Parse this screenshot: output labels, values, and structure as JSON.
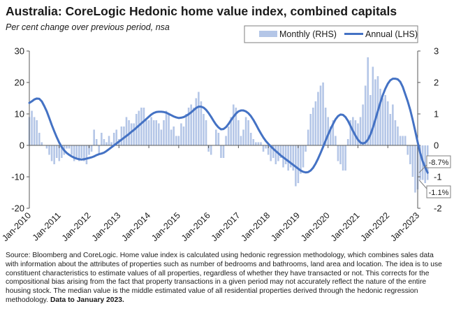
{
  "header": {
    "title": "Australia: CoreLogic Hedonic home value index, combined capitals",
    "subtitle": "Per cent change over previous period, nsa"
  },
  "footer": {
    "source": "Source: Bloomberg and CoreLogic. Home value index is calculated using hedonic regression methodology, which combines sales data with information about the attributes of properties such as number of bedrooms and bathrooms, land area and location. The idea is to use constituent characteristics to estimate values of all properties, regardless of whether they have transacted or not. This corrects for the compositional bias arising from the fact that property transactions in a given period may not accurately reflect the nature of the entire housing stock. The median value is the middle estimated value of all residential properties derived through the hedonic regression methodology.",
    "data_note": "Data to January 2023."
  },
  "chart_data": {
    "type": "bar+line",
    "colors": {
      "monthly": "#b4c6e7",
      "annual": "#4472c4"
    },
    "legend": {
      "placement": "top-right",
      "monthly_label": "Monthly (RHS)",
      "annual_label": "Annual (LHS)"
    },
    "x_ticks": [
      "Jan-2010",
      "Jan-2011",
      "Jan-2012",
      "Jan-2013",
      "Jan-2014",
      "Jan-2015",
      "Jan-2016",
      "Jan-2017",
      "Jan-2018",
      "Jan-2019",
      "Jan-2020",
      "Jan-2021",
      "Jan-2022",
      "Jan-2023"
    ],
    "y_left": {
      "label": "",
      "range": [
        -20,
        30
      ],
      "ticks": [
        "30",
        "20",
        "10",
        "0",
        "-10",
        "-20"
      ]
    },
    "y_right": {
      "label": "",
      "range": [
        -2,
        3
      ],
      "ticks": [
        "3",
        "2",
        "1",
        "0",
        "-1",
        "-2"
      ]
    },
    "annotations": {
      "annual_last": "-8.7%",
      "monthly_last": "-1.1%"
    },
    "series": [
      {
        "name": "Annual (LHS)",
        "axis": "left",
        "type": "line",
        "start": "2010-01",
        "values": [
          13.5,
          14.0,
          14.6,
          14.9,
          14.8,
          14.0,
          12.5,
          10.8,
          8.7,
          6.5,
          4.5,
          2.6,
          0.9,
          -0.5,
          -1.6,
          -2.4,
          -3.0,
          -3.5,
          -3.9,
          -4.2,
          -4.4,
          -4.5,
          -4.4,
          -4.2,
          -4.0,
          -3.8,
          -3.5,
          -3.1,
          -2.8,
          -2.6,
          -2.3,
          -1.8,
          -1.2,
          -0.6,
          0.0,
          0.6,
          1.2,
          1.8,
          2.4,
          3.0,
          3.6,
          4.3,
          4.9,
          5.6,
          6.3,
          7.0,
          7.7,
          8.4,
          9.1,
          9.8,
          10.3,
          10.6,
          10.7,
          10.7,
          10.6,
          10.4,
          10.0,
          9.6,
          9.2,
          8.9,
          8.7,
          8.8,
          9.0,
          9.4,
          9.9,
          10.5,
          11.2,
          11.9,
          12.3,
          12.3,
          12.0,
          11.3,
          10.3,
          9.1,
          7.8,
          6.6,
          5.7,
          5.1,
          5.2,
          5.8,
          6.8,
          8.0,
          9.1,
          10.1,
          10.8,
          11.1,
          11.1,
          10.8,
          10.2,
          9.3,
          8.1,
          6.7,
          5.2,
          3.8,
          2.5,
          1.4,
          0.5,
          -0.3,
          -1.1,
          -1.8,
          -2.5,
          -3.2,
          -3.8,
          -4.4,
          -5.0,
          -5.6,
          -6.2,
          -6.8,
          -7.4,
          -8.0,
          -8.4,
          -8.6,
          -8.5,
          -8.0,
          -7.1,
          -5.8,
          -4.2,
          -2.4,
          -0.5,
          1.5,
          3.4,
          5.2,
          6.8,
          8.3,
          9.3,
          9.8,
          9.7,
          9.0,
          7.8,
          6.2,
          4.6,
          3.1,
          1.8,
          0.9,
          0.6,
          0.9,
          1.8,
          3.4,
          5.6,
          8.2,
          10.9,
          13.6,
          16.0,
          18.0,
          19.6,
          20.7,
          21.2,
          21.2,
          21.0,
          20.2,
          18.6,
          16.3,
          14.0,
          11.3,
          8.1,
          4.6,
          1.0,
          -2.4,
          -5.0,
          -7.0,
          -8.7
        ]
      },
      {
        "name": "Monthly (RHS)",
        "axis": "right",
        "type": "bar",
        "start": "2010-01",
        "values": [
          0.9,
          1.1,
          0.9,
          0.8,
          0.4,
          0.1,
          0.0,
          -0.1,
          -0.3,
          -0.5,
          -0.6,
          -0.4,
          -0.5,
          -0.4,
          -0.3,
          -0.1,
          -0.1,
          -0.3,
          -0.5,
          -0.4,
          -0.5,
          -0.4,
          -0.5,
          -0.6,
          -0.3,
          -0.2,
          0.5,
          0.2,
          -0.3,
          0.4,
          0.2,
          0.1,
          0.3,
          0.1,
          0.4,
          0.5,
          0.2,
          0.6,
          0.6,
          0.9,
          0.8,
          0.7,
          0.7,
          1.0,
          1.1,
          1.2,
          1.2,
          0.8,
          0.8,
          0.9,
          0.8,
          0.8,
          0.7,
          0.5,
          0.8,
          1.1,
          1.0,
          0.5,
          0.6,
          0.3,
          0.3,
          0.7,
          0.6,
          1.0,
          1.2,
          1.3,
          1.2,
          1.5,
          1.7,
          1.4,
          1.0,
          0.8,
          -0.2,
          -0.3,
          0.0,
          0.5,
          0.4,
          -0.4,
          -0.4,
          0.3,
          0.6,
          0.9,
          1.3,
          1.2,
          0.8,
          0.3,
          0.5,
          0.9,
          0.8,
          0.4,
          0.2,
          0.1,
          0.1,
          0.1,
          -0.2,
          -0.1,
          -0.3,
          -0.5,
          -0.4,
          -0.6,
          -0.5,
          -0.4,
          -0.7,
          -0.6,
          -0.8,
          -0.7,
          -0.8,
          -1.3,
          -1.2,
          -0.9,
          -0.7,
          -0.2,
          0.5,
          1.0,
          1.2,
          1.4,
          1.7,
          1.9,
          2.0,
          1.2,
          0.9,
          0.6,
          0.8,
          0.3,
          -0.5,
          -0.6,
          -0.8,
          -0.8,
          0.2,
          0.8,
          0.9,
          0.8,
          0.7,
          0.9,
          1.3,
          1.9,
          2.8,
          1.6,
          2.5,
          2.1,
          2.2,
          1.8,
          1.5,
          1.6,
          1.4,
          1.0,
          1.3,
          0.8,
          0.6,
          0.3,
          0.3,
          0.3,
          -0.3,
          -0.6,
          -1.0,
          -1.5,
          -1.4,
          -1.1,
          -1.1,
          -1.2,
          -1.1
        ]
      }
    ]
  }
}
